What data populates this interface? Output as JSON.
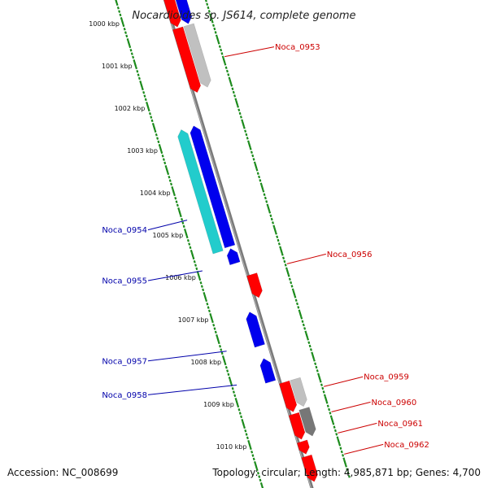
{
  "title": "Nocardioides sp. JS614, complete genome",
  "footer": {
    "accession": "Accession: NC_008699",
    "summary": "Topology: circular; Length: 4,985,871 bp; Genes: 4,700"
  },
  "colors": {
    "backbone": "#7a7a7a",
    "tick": "#1a8a1a",
    "forward_label": "#cc0000",
    "reverse_label": "#0000aa",
    "gene_red": "#ff0000",
    "gene_blue": "#0000ee",
    "gene_cyan": "#22cccc",
    "gene_gray": "#c0c0c0",
    "gene_darkgray": "#777777"
  },
  "scale": {
    "start_kbp": 1000,
    "end_kbp": 1010,
    "labels": [
      "1000 kbp",
      "1001 kbp",
      "1002 kbp",
      "1003 kbp",
      "1004 kbp",
      "1005 kbp",
      "1006 kbp",
      "1007 kbp",
      "1008 kbp",
      "1009 kbp",
      "1010 kbp"
    ]
  },
  "genes": [
    {
      "track": 0,
      "strand": "fwd",
      "color": "red",
      "start_kbp": 999.5,
      "end_kbp": 1000.45
    },
    {
      "track": 1,
      "strand": "fwd",
      "color": "blue",
      "start_kbp": 999.5,
      "end_kbp": 1000.45
    },
    {
      "track": 0,
      "strand": "fwd",
      "color": "red",
      "start_kbp": 1000.48,
      "end_kbp": 1002.0
    },
    {
      "track": 1,
      "strand": "fwd",
      "color": "gray",
      "start_kbp": 1000.48,
      "end_kbp": 1001.95
    },
    {
      "track": -1,
      "strand": "rev",
      "color": "blue",
      "start_kbp": 1002.7,
      "end_kbp": 1005.55
    },
    {
      "track": -2,
      "strand": "rev",
      "color": "cyan",
      "start_kbp": 1002.7,
      "end_kbp": 1005.6
    },
    {
      "track": -1,
      "strand": "rev",
      "color": "blue",
      "start_kbp": 1005.6,
      "end_kbp": 1005.95
    },
    {
      "track": 0,
      "strand": "fwd",
      "color": "red",
      "start_kbp": 1006.3,
      "end_kbp": 1006.85
    },
    {
      "track": -1,
      "strand": "rev",
      "color": "blue",
      "start_kbp": 1007.1,
      "end_kbp": 1007.9
    },
    {
      "track": -1,
      "strand": "rev",
      "color": "blue",
      "start_kbp": 1008.2,
      "end_kbp": 1008.75
    },
    {
      "track": 0,
      "strand": "fwd",
      "color": "red",
      "start_kbp": 1008.85,
      "end_kbp": 1009.55
    },
    {
      "track": 1,
      "strand": "fwd",
      "color": "gray",
      "start_kbp": 1008.85,
      "end_kbp": 1009.5
    },
    {
      "track": 0,
      "strand": "fwd",
      "color": "red",
      "start_kbp": 1009.6,
      "end_kbp": 1010.2
    },
    {
      "track": 1,
      "strand": "fwd",
      "color": "darkgray",
      "start_kbp": 1009.55,
      "end_kbp": 1010.2
    },
    {
      "track": 0,
      "strand": "fwd",
      "color": "red",
      "start_kbp": 1010.25,
      "end_kbp": 1010.55
    },
    {
      "track": 0,
      "strand": "fwd",
      "color": "red",
      "start_kbp": 1010.6,
      "end_kbp": 1011.2
    }
  ],
  "gene_labels": [
    {
      "text": "Noca_0953",
      "side": "right",
      "at_kbp": 1001.4
    },
    {
      "text": "Noca_0954",
      "side": "left",
      "at_kbp": 1004.7
    },
    {
      "text": "Noca_0955",
      "side": "left",
      "at_kbp": 1005.9
    },
    {
      "text": "Noca_0956",
      "side": "right",
      "at_kbp": 1006.3
    },
    {
      "text": "Noca_0957",
      "side": "left",
      "at_kbp": 1007.8
    },
    {
      "text": "Noca_0958",
      "side": "left",
      "at_kbp": 1008.6
    },
    {
      "text": "Noca_0959",
      "side": "right",
      "at_kbp": 1009.2
    },
    {
      "text": "Noca_0960",
      "side": "right",
      "at_kbp": 1009.8
    },
    {
      "text": "Noca_0961",
      "side": "right",
      "at_kbp": 1010.3
    },
    {
      "text": "Noca_0962",
      "side": "right",
      "at_kbp": 1010.8
    }
  ]
}
